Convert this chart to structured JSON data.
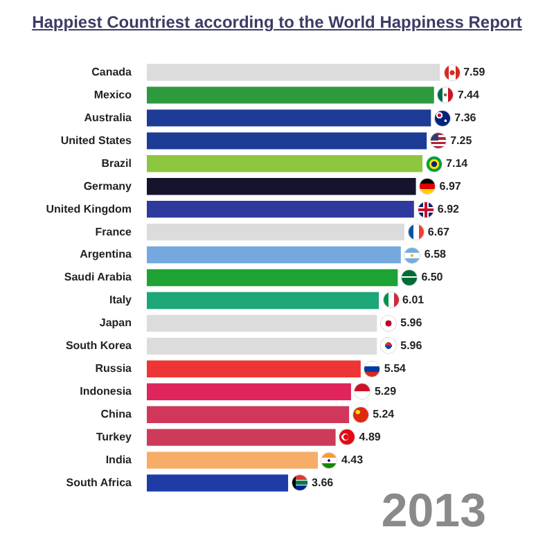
{
  "chart_data": {
    "type": "bar",
    "orientation": "horizontal",
    "title": "Happiest Countriest according to the World Happiness Report",
    "categories": [
      "Canada",
      "Mexico",
      "Australia",
      "United States",
      "Brazil",
      "Germany",
      "United Kingdom",
      "France",
      "Argentina",
      "Saudi Arabia",
      "Italy",
      "Japan",
      "South Korea",
      "Russia",
      "Indonesia",
      "China",
      "Turkey",
      "India",
      "South Africa"
    ],
    "values": [
      7.59,
      7.44,
      7.36,
      7.25,
      7.14,
      6.97,
      6.92,
      6.67,
      6.58,
      6.5,
      6.01,
      5.96,
      5.96,
      5.54,
      5.29,
      5.24,
      4.89,
      4.43,
      3.66
    ],
    "value_labels": [
      "7.59",
      "7.44",
      "7.36",
      "7.25",
      "7.14",
      "6.97",
      "6.92",
      "6.67",
      "6.58",
      "6.50",
      "6.01",
      "5.96",
      "5.96",
      "5.54",
      "5.29",
      "5.24",
      "4.89",
      "4.43",
      "3.66"
    ],
    "colors": [
      "#dcdcdc",
      "#2d9a3e",
      "#1d3c96",
      "#1d3c96",
      "#8dc63f",
      "#14142c",
      "#2e3a9e",
      "#dcdcdc",
      "#74a8df",
      "#1da334",
      "#1ea776",
      "#dcdcdc",
      "#dcdcdc",
      "#ee3535",
      "#e0245c",
      "#d1375a",
      "#cd3b5a",
      "#f5ad68",
      "#1f3ba6"
    ],
    "annotations": [
      "2013"
    ]
  }
}
